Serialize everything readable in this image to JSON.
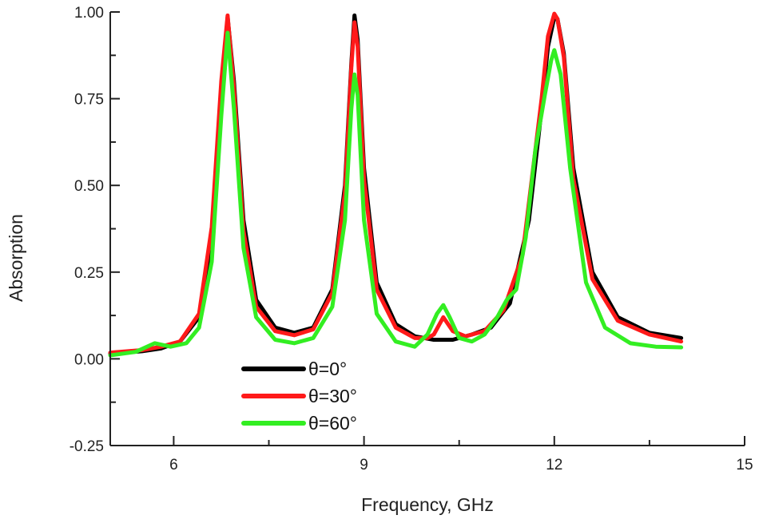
{
  "chart_data": {
    "type": "line",
    "title": "",
    "xlabel": "Frequency, GHz",
    "ylabel": "Absorption",
    "xlim": [
      5,
      15
    ],
    "ylim": [
      -0.25,
      1.0
    ],
    "xticks": [
      6,
      9,
      12,
      15
    ],
    "xtick_labels": [
      "6",
      "9",
      "12",
      "15"
    ],
    "yticks": [
      -0.25,
      0.0,
      0.25,
      0.5,
      0.75,
      1.0
    ],
    "ytick_labels": [
      "-0.25",
      "0.00",
      "0.25",
      "0.50",
      "0.75",
      "1.00"
    ],
    "grid": false,
    "legend_position": "bottom-center",
    "series": [
      {
        "name": "θ=0°",
        "color": "#000000",
        "x": [
          5.0,
          5.5,
          5.8,
          6.1,
          6.4,
          6.6,
          6.75,
          6.85,
          6.95,
          7.1,
          7.3,
          7.6,
          7.9,
          8.2,
          8.5,
          8.7,
          8.8,
          8.85,
          8.9,
          9.0,
          9.2,
          9.5,
          9.8,
          10.1,
          10.25,
          10.4,
          10.7,
          11.0,
          11.3,
          11.6,
          11.8,
          11.9,
          12.0,
          12.05,
          12.15,
          12.3,
          12.6,
          13.0,
          13.5,
          14.0
        ],
        "y": [
          0.015,
          0.022,
          0.03,
          0.05,
          0.12,
          0.35,
          0.75,
          0.985,
          0.8,
          0.4,
          0.17,
          0.09,
          0.075,
          0.09,
          0.2,
          0.5,
          0.85,
          0.99,
          0.92,
          0.55,
          0.22,
          0.1,
          0.065,
          0.055,
          0.055,
          0.055,
          0.07,
          0.09,
          0.16,
          0.4,
          0.72,
          0.9,
          0.985,
          0.98,
          0.88,
          0.55,
          0.25,
          0.12,
          0.075,
          0.06
        ]
      },
      {
        "name": "θ=30°",
        "color": "#ff1a1a",
        "x": [
          5.0,
          5.5,
          5.8,
          6.1,
          6.4,
          6.6,
          6.75,
          6.85,
          6.95,
          7.1,
          7.3,
          7.6,
          7.9,
          8.2,
          8.5,
          8.7,
          8.8,
          8.85,
          8.9,
          9.0,
          9.2,
          9.5,
          9.8,
          10.0,
          10.1,
          10.25,
          10.4,
          10.6,
          10.9,
          11.2,
          11.5,
          11.8,
          11.9,
          12.0,
          12.05,
          12.15,
          12.3,
          12.6,
          13.0,
          13.5,
          14.0
        ],
        "y": [
          0.018,
          0.025,
          0.035,
          0.05,
          0.13,
          0.38,
          0.8,
          0.99,
          0.78,
          0.37,
          0.15,
          0.08,
          0.068,
          0.085,
          0.19,
          0.48,
          0.84,
          0.97,
          0.9,
          0.52,
          0.2,
          0.09,
          0.06,
          0.06,
          0.07,
          0.12,
          0.08,
          0.065,
          0.08,
          0.14,
          0.3,
          0.75,
          0.93,
          0.995,
          0.98,
          0.87,
          0.52,
          0.23,
          0.11,
          0.07,
          0.05
        ]
      },
      {
        "name": "θ=60°",
        "color": "#33ee22",
        "x": [
          5.0,
          5.4,
          5.7,
          5.95,
          6.2,
          6.4,
          6.6,
          6.75,
          6.85,
          6.95,
          7.1,
          7.3,
          7.6,
          7.9,
          8.2,
          8.5,
          8.7,
          8.8,
          8.85,
          8.9,
          9.0,
          9.2,
          9.5,
          9.8,
          10.0,
          10.15,
          10.25,
          10.35,
          10.5,
          10.7,
          10.9,
          11.1,
          11.25,
          11.4,
          11.55,
          11.7,
          11.85,
          11.95,
          12.0,
          12.1,
          12.25,
          12.5,
          12.8,
          13.2,
          13.6,
          14.0
        ],
        "y": [
          0.01,
          0.02,
          0.045,
          0.035,
          0.045,
          0.09,
          0.28,
          0.7,
          0.94,
          0.72,
          0.32,
          0.12,
          0.055,
          0.045,
          0.06,
          0.15,
          0.4,
          0.72,
          0.82,
          0.76,
          0.4,
          0.13,
          0.05,
          0.035,
          0.07,
          0.13,
          0.155,
          0.12,
          0.06,
          0.05,
          0.07,
          0.12,
          0.17,
          0.2,
          0.35,
          0.6,
          0.76,
          0.86,
          0.89,
          0.82,
          0.55,
          0.22,
          0.09,
          0.045,
          0.035,
          0.033
        ]
      }
    ]
  }
}
